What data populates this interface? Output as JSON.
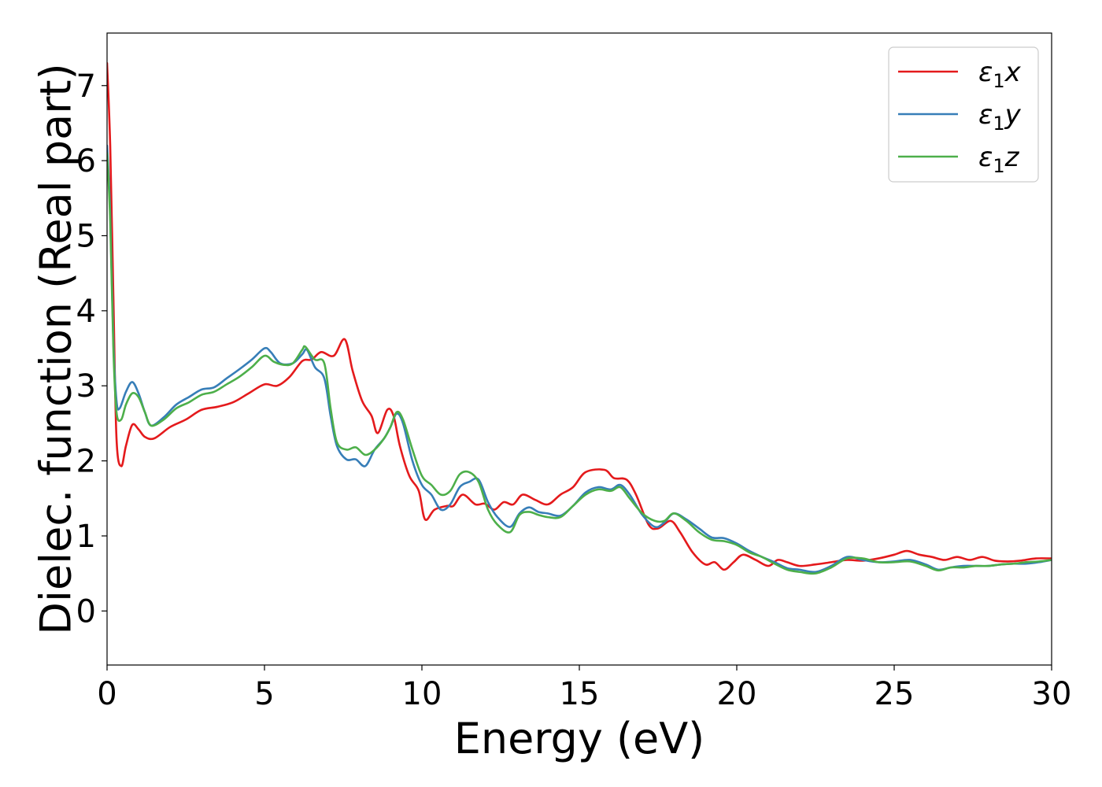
{
  "chart_data": {
    "type": "line",
    "xlabel": "Energy (eV)",
    "ylabel": "Dielec. function (Real part)",
    "xlim": [
      0,
      30
    ],
    "ylim": [
      -0.72,
      7.7
    ],
    "xticks": [
      0,
      5,
      10,
      15,
      20,
      25,
      30
    ],
    "yticks": [
      0,
      1,
      2,
      3,
      4,
      5,
      6,
      7
    ],
    "grid": false,
    "legend_position": "top-right",
    "series": [
      {
        "name": "ε1x",
        "color": "#e41a1c",
        "points": [
          [
            0,
            7.3
          ],
          [
            0.1,
            6.2
          ],
          [
            0.2,
            4.2
          ],
          [
            0.3,
            2.3
          ],
          [
            0.45,
            1.93
          ],
          [
            0.6,
            2.2
          ],
          [
            0.8,
            2.48
          ],
          [
            1.0,
            2.42
          ],
          [
            1.2,
            2.32
          ],
          [
            1.5,
            2.3
          ],
          [
            2.0,
            2.45
          ],
          [
            2.5,
            2.55
          ],
          [
            3.0,
            2.68
          ],
          [
            3.5,
            2.72
          ],
          [
            4.0,
            2.78
          ],
          [
            4.5,
            2.9
          ],
          [
            5.0,
            3.02
          ],
          [
            5.4,
            3.0
          ],
          [
            5.8,
            3.12
          ],
          [
            6.2,
            3.33
          ],
          [
            6.5,
            3.35
          ],
          [
            6.8,
            3.45
          ],
          [
            7.2,
            3.4
          ],
          [
            7.55,
            3.62
          ],
          [
            7.8,
            3.2
          ],
          [
            8.1,
            2.8
          ],
          [
            8.4,
            2.6
          ],
          [
            8.6,
            2.37
          ],
          [
            8.9,
            2.68
          ],
          [
            9.1,
            2.6
          ],
          [
            9.3,
            2.2
          ],
          [
            9.6,
            1.8
          ],
          [
            9.9,
            1.6
          ],
          [
            10.1,
            1.22
          ],
          [
            10.4,
            1.35
          ],
          [
            10.8,
            1.4
          ],
          [
            11.0,
            1.4
          ],
          [
            11.3,
            1.55
          ],
          [
            11.7,
            1.42
          ],
          [
            12.0,
            1.43
          ],
          [
            12.3,
            1.35
          ],
          [
            12.6,
            1.45
          ],
          [
            12.9,
            1.42
          ],
          [
            13.2,
            1.55
          ],
          [
            13.6,
            1.48
          ],
          [
            14.0,
            1.42
          ],
          [
            14.4,
            1.55
          ],
          [
            14.8,
            1.65
          ],
          [
            15.2,
            1.85
          ],
          [
            15.8,
            1.88
          ],
          [
            16.1,
            1.77
          ],
          [
            16.5,
            1.75
          ],
          [
            16.8,
            1.55
          ],
          [
            17.2,
            1.15
          ],
          [
            17.5,
            1.1
          ],
          [
            17.9,
            1.2
          ],
          [
            18.2,
            1.05
          ],
          [
            18.6,
            0.78
          ],
          [
            19.0,
            0.62
          ],
          [
            19.3,
            0.65
          ],
          [
            19.6,
            0.55
          ],
          [
            19.9,
            0.65
          ],
          [
            20.2,
            0.75
          ],
          [
            20.6,
            0.68
          ],
          [
            21.0,
            0.6
          ],
          [
            21.3,
            0.68
          ],
          [
            21.6,
            0.65
          ],
          [
            22.0,
            0.6
          ],
          [
            22.5,
            0.62
          ],
          [
            23.0,
            0.65
          ],
          [
            23.5,
            0.68
          ],
          [
            24.0,
            0.67
          ],
          [
            24.5,
            0.7
          ],
          [
            25.0,
            0.75
          ],
          [
            25.4,
            0.8
          ],
          [
            25.8,
            0.75
          ],
          [
            26.2,
            0.72
          ],
          [
            26.6,
            0.68
          ],
          [
            27.0,
            0.72
          ],
          [
            27.4,
            0.68
          ],
          [
            27.8,
            0.72
          ],
          [
            28.2,
            0.67
          ],
          [
            28.6,
            0.66
          ],
          [
            29.0,
            0.67
          ],
          [
            29.5,
            0.7
          ],
          [
            30.0,
            0.7
          ]
        ]
      },
      {
        "name": "ε1y",
        "color": "#377eb8",
        "points": [
          [
            0,
            6.2
          ],
          [
            0.1,
            5.3
          ],
          [
            0.2,
            3.6
          ],
          [
            0.3,
            2.8
          ],
          [
            0.4,
            2.7
          ],
          [
            0.6,
            2.92
          ],
          [
            0.8,
            3.05
          ],
          [
            1.0,
            2.9
          ],
          [
            1.2,
            2.65
          ],
          [
            1.4,
            2.47
          ],
          [
            1.8,
            2.58
          ],
          [
            2.2,
            2.75
          ],
          [
            2.6,
            2.85
          ],
          [
            3.0,
            2.95
          ],
          [
            3.4,
            2.98
          ],
          [
            3.8,
            3.1
          ],
          [
            4.2,
            3.22
          ],
          [
            4.6,
            3.35
          ],
          [
            5.0,
            3.5
          ],
          [
            5.2,
            3.45
          ],
          [
            5.5,
            3.3
          ],
          [
            5.9,
            3.3
          ],
          [
            6.2,
            3.42
          ],
          [
            6.35,
            3.48
          ],
          [
            6.6,
            3.25
          ],
          [
            6.9,
            3.1
          ],
          [
            7.1,
            2.6
          ],
          [
            7.3,
            2.2
          ],
          [
            7.6,
            2.02
          ],
          [
            7.9,
            2.02
          ],
          [
            8.2,
            1.93
          ],
          [
            8.5,
            2.15
          ],
          [
            8.8,
            2.3
          ],
          [
            9.0,
            2.45
          ],
          [
            9.2,
            2.63
          ],
          [
            9.4,
            2.5
          ],
          [
            9.7,
            2.0
          ],
          [
            10.0,
            1.68
          ],
          [
            10.3,
            1.55
          ],
          [
            10.6,
            1.35
          ],
          [
            10.9,
            1.42
          ],
          [
            11.2,
            1.65
          ],
          [
            11.5,
            1.72
          ],
          [
            11.8,
            1.75
          ],
          [
            12.1,
            1.45
          ],
          [
            12.4,
            1.25
          ],
          [
            12.8,
            1.12
          ],
          [
            13.1,
            1.3
          ],
          [
            13.4,
            1.38
          ],
          [
            13.7,
            1.32
          ],
          [
            14.0,
            1.3
          ],
          [
            14.4,
            1.27
          ],
          [
            14.8,
            1.4
          ],
          [
            15.2,
            1.58
          ],
          [
            15.6,
            1.65
          ],
          [
            16.0,
            1.62
          ],
          [
            16.3,
            1.68
          ],
          [
            16.6,
            1.55
          ],
          [
            17.0,
            1.28
          ],
          [
            17.4,
            1.12
          ],
          [
            17.7,
            1.18
          ],
          [
            18.0,
            1.3
          ],
          [
            18.4,
            1.22
          ],
          [
            18.8,
            1.1
          ],
          [
            19.2,
            0.98
          ],
          [
            19.6,
            0.97
          ],
          [
            20.0,
            0.9
          ],
          [
            20.4,
            0.8
          ],
          [
            20.8,
            0.72
          ],
          [
            21.2,
            0.65
          ],
          [
            21.6,
            0.57
          ],
          [
            22.0,
            0.55
          ],
          [
            22.5,
            0.52
          ],
          [
            23.0,
            0.6
          ],
          [
            23.5,
            0.72
          ],
          [
            24.0,
            0.68
          ],
          [
            24.5,
            0.65
          ],
          [
            25.0,
            0.66
          ],
          [
            25.5,
            0.68
          ],
          [
            26.0,
            0.62
          ],
          [
            26.4,
            0.55
          ],
          [
            26.8,
            0.58
          ],
          [
            27.2,
            0.6
          ],
          [
            27.6,
            0.6
          ],
          [
            28.0,
            0.6
          ],
          [
            28.4,
            0.62
          ],
          [
            28.8,
            0.63
          ],
          [
            29.2,
            0.63
          ],
          [
            29.6,
            0.65
          ],
          [
            30.0,
            0.68
          ]
        ]
      },
      {
        "name": "ε1z",
        "color": "#4daf4a",
        "points": [
          [
            0,
            6.1
          ],
          [
            0.1,
            5.2
          ],
          [
            0.2,
            3.5
          ],
          [
            0.3,
            2.65
          ],
          [
            0.45,
            2.55
          ],
          [
            0.6,
            2.75
          ],
          [
            0.8,
            2.9
          ],
          [
            1.0,
            2.85
          ],
          [
            1.2,
            2.65
          ],
          [
            1.4,
            2.47
          ],
          [
            1.8,
            2.55
          ],
          [
            2.2,
            2.7
          ],
          [
            2.6,
            2.78
          ],
          [
            3.0,
            2.88
          ],
          [
            3.4,
            2.92
          ],
          [
            3.8,
            3.02
          ],
          [
            4.2,
            3.12
          ],
          [
            4.6,
            3.25
          ],
          [
            5.0,
            3.4
          ],
          [
            5.3,
            3.32
          ],
          [
            5.6,
            3.28
          ],
          [
            5.9,
            3.3
          ],
          [
            6.2,
            3.48
          ],
          [
            6.3,
            3.52
          ],
          [
            6.6,
            3.35
          ],
          [
            6.9,
            3.3
          ],
          [
            7.1,
            2.7
          ],
          [
            7.3,
            2.25
          ],
          [
            7.6,
            2.15
          ],
          [
            7.9,
            2.18
          ],
          [
            8.2,
            2.08
          ],
          [
            8.5,
            2.15
          ],
          [
            8.8,
            2.3
          ],
          [
            9.0,
            2.45
          ],
          [
            9.2,
            2.65
          ],
          [
            9.4,
            2.55
          ],
          [
            9.7,
            2.15
          ],
          [
            10.0,
            1.8
          ],
          [
            10.3,
            1.68
          ],
          [
            10.6,
            1.55
          ],
          [
            10.9,
            1.6
          ],
          [
            11.2,
            1.82
          ],
          [
            11.5,
            1.85
          ],
          [
            11.8,
            1.72
          ],
          [
            12.1,
            1.35
          ],
          [
            12.4,
            1.15
          ],
          [
            12.8,
            1.05
          ],
          [
            13.1,
            1.28
          ],
          [
            13.4,
            1.32
          ],
          [
            13.7,
            1.28
          ],
          [
            14.0,
            1.25
          ],
          [
            14.4,
            1.25
          ],
          [
            14.8,
            1.4
          ],
          [
            15.2,
            1.55
          ],
          [
            15.6,
            1.62
          ],
          [
            16.0,
            1.6
          ],
          [
            16.3,
            1.65
          ],
          [
            16.6,
            1.5
          ],
          [
            17.0,
            1.3
          ],
          [
            17.4,
            1.2
          ],
          [
            17.7,
            1.2
          ],
          [
            18.0,
            1.3
          ],
          [
            18.4,
            1.2
          ],
          [
            18.8,
            1.05
          ],
          [
            19.2,
            0.95
          ],
          [
            19.6,
            0.93
          ],
          [
            20.0,
            0.88
          ],
          [
            20.4,
            0.78
          ],
          [
            20.8,
            0.72
          ],
          [
            21.2,
            0.63
          ],
          [
            21.6,
            0.55
          ],
          [
            22.0,
            0.52
          ],
          [
            22.5,
            0.5
          ],
          [
            23.0,
            0.58
          ],
          [
            23.5,
            0.7
          ],
          [
            24.0,
            0.7
          ],
          [
            24.5,
            0.65
          ],
          [
            25.0,
            0.65
          ],
          [
            25.5,
            0.66
          ],
          [
            26.0,
            0.6
          ],
          [
            26.4,
            0.54
          ],
          [
            26.8,
            0.58
          ],
          [
            27.2,
            0.58
          ],
          [
            27.6,
            0.6
          ],
          [
            28.0,
            0.6
          ],
          [
            28.4,
            0.62
          ],
          [
            28.8,
            0.63
          ],
          [
            29.2,
            0.65
          ],
          [
            29.6,
            0.66
          ],
          [
            30.0,
            0.68
          ]
        ]
      }
    ]
  }
}
